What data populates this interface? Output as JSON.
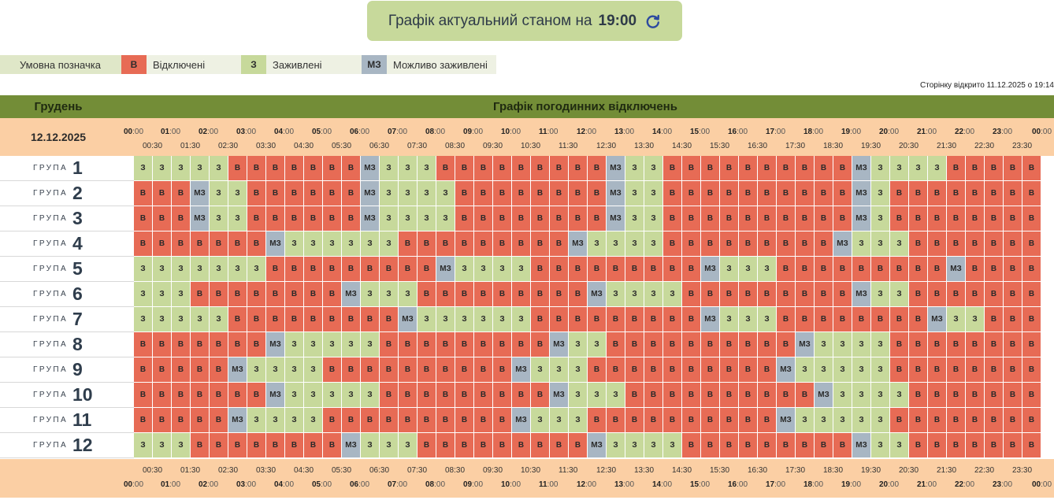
{
  "banner": {
    "text": "Графік актуальний станом на",
    "time": "19:00",
    "refresh_icon": "refresh-icon"
  },
  "legend": {
    "title": "Умовна позначка",
    "items": [
      {
        "code": "В",
        "label": "Відключені",
        "color": "#e76b55"
      },
      {
        "code": "З",
        "label": "Заживлені",
        "color": "#c7d99b"
      },
      {
        "code": "МЗ",
        "label": "Можливо заживлені",
        "color": "#a8b6c3"
      }
    ]
  },
  "opened": "Сторінку відкрито 11.12.2025 о 19:14",
  "schedule": {
    "month": "Грудень",
    "title": "Графік погодинних відключень",
    "date": "12.12.2025",
    "group_label": "ГРУПА",
    "hour_ticks": [
      "00",
      "01",
      "02",
      "03",
      "04",
      "05",
      "06",
      "07",
      "08",
      "09",
      "10",
      "11",
      "12",
      "13",
      "14",
      "15",
      "16",
      "17",
      "18",
      "19",
      "20",
      "21",
      "22",
      "23",
      "00"
    ],
    "hour_suffix": ":00",
    "half_ticks": [
      "00:30",
      "01:30",
      "02:30",
      "03:30",
      "04:30",
      "05:30",
      "06:30",
      "07:30",
      "08:30",
      "09:30",
      "10:30",
      "11:30",
      "12:30",
      "13:30",
      "14:30",
      "15:30",
      "16:30",
      "17:30",
      "18:30",
      "19:30",
      "20:30",
      "21:30",
      "22:30",
      "23:30"
    ],
    "status_codes": {
      "off": "В",
      "on": "З",
      "maybe": "МЗ"
    },
    "groups": [
      {
        "number": "1",
        "slots": "ZZZZZBBBBBBBMZZZZBBBBBBBBBMZZZBBBBBBBBBBMZZZZZ"
      },
      {
        "number": "2",
        "slots": "BBBMZZZBBBBBBMZZZZZBBBBBBBBMZZZBBBBBBBBBBMZZ"
      },
      {
        "number": "3",
        "slots": "BBBMZZZBBBBBBMZZZZZBBBBBBBBMZZZBBBBBBBBBBMZZ"
      },
      {
        "number": "4",
        "slots": "BBBBBBBMZZZZZZZBBBBBBBBBMZZZZZBBBBBBBBBMZZZZBB"
      },
      {
        "number": "5",
        "slots": "ZZZZZZZBBBBBBBBBMZZZZZBBBBBBBBBMZZZZBBBBBBBBBMZ"
      },
      {
        "number": "6",
        "slots": "ZZZBBBBBBBBMZZZZBBBBBBBBBMZZZZZBBBBBBBBBMZZZBBB"
      },
      {
        "number": "7",
        "slots": "ZZZZZBBBBBBBBBMZZZZZZZBBBBBBBBBMZZZZBBBBBBBBMZZZ"
      },
      {
        "number": "8",
        "slots": "BBBBBBBMZZZZZZBBBBBBBBBMZZZBBBBBBBBBBMZZZZZBBBBB"
      },
      {
        "number": "9",
        "slots": "BBBBBMZZZZZBBBBBBBBBBMZZZZBBBBBBBBBBMZZZZZZBBBBB"
      },
      {
        "number": "10",
        "slots": "BBBBBBBMZZZZZZBBBBBBBBBMZZZZBBBBBBBBBBMZZZZZBBBB"
      },
      {
        "number": "11",
        "slots": "BBBBBMZZZZZBBBBBBBBBBMZZZZBBBBBBBBBBMZZZZZZBBBBB"
      },
      {
        "number": "12",
        "slots": "ZZZBBBBBBBBMZZZZBBBBBBBBBMZZZZZBBBBBBBBBMZZZBBB"
      }
    ]
  }
}
